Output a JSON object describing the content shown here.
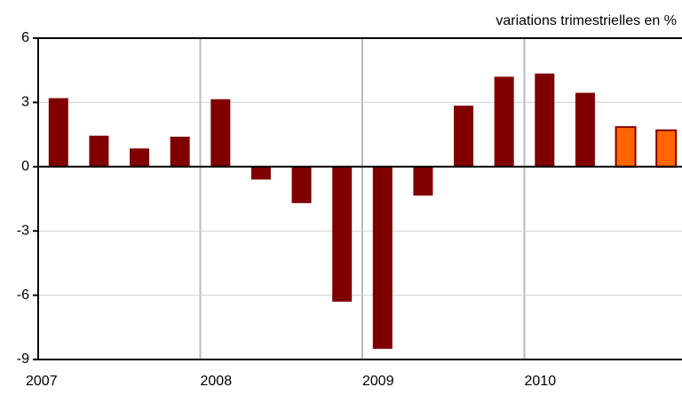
{
  "chart_data": {
    "type": "bar",
    "subtitle": "variations trimestrielles en %",
    "categories": [
      "2007",
      null,
      null,
      null,
      "2008",
      null,
      null,
      null,
      "2009",
      null,
      null,
      null,
      "2010",
      null,
      null,
      null
    ],
    "values": [
      3.2,
      1.45,
      0.85,
      1.4,
      3.15,
      -0.6,
      -1.7,
      -6.3,
      -8.5,
      -1.35,
      2.85,
      4.2,
      4.35,
      3.45,
      1.85,
      1.7
    ],
    "colors": [
      "#800000",
      "#800000",
      "#800000",
      "#800000",
      "#800000",
      "#800000",
      "#800000",
      "#800000",
      "#800000",
      "#800000",
      "#800000",
      "#800000",
      "#800000",
      "#800000",
      "#ff6600",
      "#ff6600"
    ],
    "ylim": [
      -9,
      6
    ],
    "yticks": [
      -9,
      -6,
      -3,
      0,
      3,
      6
    ],
    "grid": true
  }
}
